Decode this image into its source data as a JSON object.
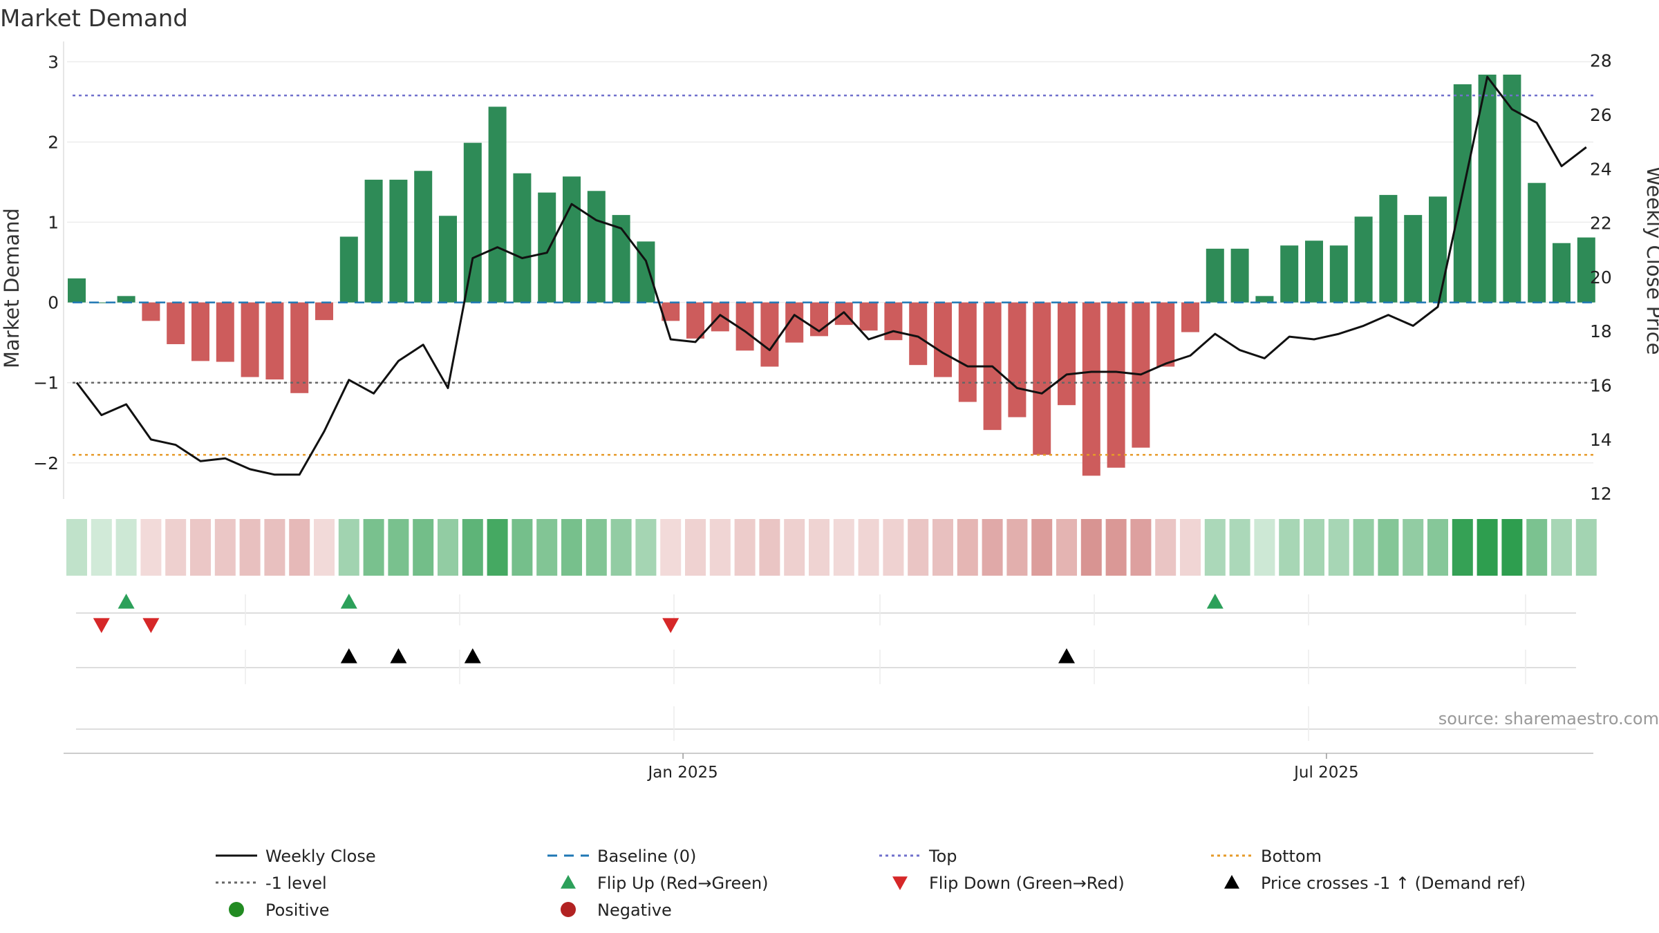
{
  "chart_data": {
    "type": "bar",
    "title": "Market Demand",
    "ylabel": "Market Demand",
    "y2label": "Weekly Close Price",
    "ylim": [
      -2.45,
      3.15
    ],
    "y2lim": [
      11.8,
      28.4
    ],
    "yticks": [
      3,
      2,
      1,
      0,
      -1,
      -2
    ],
    "ytick_labels": [
      "3",
      "2",
      "1",
      "0",
      "−1",
      "−2"
    ],
    "y2ticks": [
      28,
      26,
      24,
      22,
      20,
      18,
      16,
      14,
      12
    ],
    "y2tick_labels": [
      "28",
      "26",
      "24",
      "22",
      "20",
      "18",
      "16",
      "14",
      "12"
    ],
    "x_labels": [
      {
        "label": "Jan 2025",
        "index": 24.5
      },
      {
        "label": "Jul 2025",
        "index": 50.5
      }
    ],
    "reference_lines": {
      "baseline": 0,
      "top": 2.58,
      "bottom": -1.9,
      "minus_one": -1
    },
    "series": [
      {
        "name": "Market Demand",
        "values": [
          0.3,
          0.0,
          0.08,
          -0.23,
          -0.52,
          -0.73,
          -0.74,
          -0.93,
          -0.96,
          -1.13,
          -0.22,
          0.82,
          1.53,
          1.53,
          1.64,
          1.08,
          1.99,
          2.44,
          1.61,
          1.37,
          1.57,
          1.39,
          1.09,
          0.76,
          -0.23,
          -0.45,
          -0.36,
          -0.6,
          -0.8,
          -0.5,
          -0.42,
          -0.28,
          -0.35,
          -0.47,
          -0.78,
          -0.93,
          -1.24,
          -1.59,
          -1.43,
          -1.9,
          -1.28,
          -2.16,
          -2.06,
          -1.81,
          -0.8,
          -0.37,
          0.67,
          0.67,
          0.08,
          0.71,
          0.77,
          0.71,
          1.07,
          1.34,
          1.09,
          1.32,
          2.72,
          2.84,
          2.84,
          1.49,
          0.74,
          0.81
        ]
      },
      {
        "name": "Weekly Close",
        "values": [
          16.1,
          14.9,
          15.3,
          14.0,
          13.8,
          13.2,
          13.3,
          12.9,
          12.7,
          12.7,
          14.3,
          16.2,
          15.7,
          16.9,
          17.5,
          15.9,
          20.7,
          21.1,
          20.7,
          20.9,
          22.7,
          22.1,
          21.8,
          20.6,
          17.7,
          17.6,
          18.6,
          18.0,
          17.3,
          18.6,
          18.0,
          18.7,
          17.7,
          18.0,
          17.8,
          17.2,
          16.7,
          16.7,
          15.9,
          15.7,
          16.4,
          16.5,
          16.5,
          16.4,
          16.8,
          17.1,
          17.9,
          17.3,
          17.0,
          17.8,
          17.7,
          17.9,
          18.2,
          18.6,
          18.2,
          18.9,
          23.1,
          27.4,
          26.2,
          25.7,
          24.1,
          24.8
        ]
      }
    ],
    "flip_up_indices": [
      2,
      11,
      46
    ],
    "flip_down_indices": [
      1,
      3,
      24
    ],
    "price_cross_indices": [
      11,
      13,
      16,
      40
    ],
    "colors": {
      "positive_bar": "#2e8b57",
      "negative_bar": "#cd5c5c",
      "price_line": "#111111",
      "baseline": "#1f77b4",
      "top": "#7070cc",
      "bottom": "#e69a28",
      "minus_one": "#666666",
      "flip_up": "#2ca05a",
      "flip_down": "#d62728",
      "cross": "#000000",
      "positive_dot": "#228b22",
      "negative_dot": "#b22222"
    },
    "legend": [
      {
        "label": "Weekly Close",
        "kind": "solid",
        "color": "#111111"
      },
      {
        "label": "Baseline (0)",
        "kind": "dash",
        "color": "#1f77b4"
      },
      {
        "label": "Top",
        "kind": "dot",
        "color": "#7070cc"
      },
      {
        "label": "Bottom",
        "kind": "dot",
        "color": "#e69a28"
      },
      {
        "label": "-1 level",
        "kind": "dot",
        "color": "#666666"
      },
      {
        "label": "Flip Up (Red→Green)",
        "kind": "tri-up",
        "color": "#2ca05a"
      },
      {
        "label": "Flip Down (Green→Red)",
        "kind": "tri-down",
        "color": "#d62728"
      },
      {
        "label": "Price crosses -1 ↑ (Demand ref)",
        "kind": "tri-up",
        "color": "#000000"
      },
      {
        "label": "Positive",
        "kind": "circle",
        "color": "#228b22"
      },
      {
        "label": "Negative",
        "kind": "circle",
        "color": "#b22222"
      }
    ],
    "source": "source: sharemaestro.com"
  }
}
